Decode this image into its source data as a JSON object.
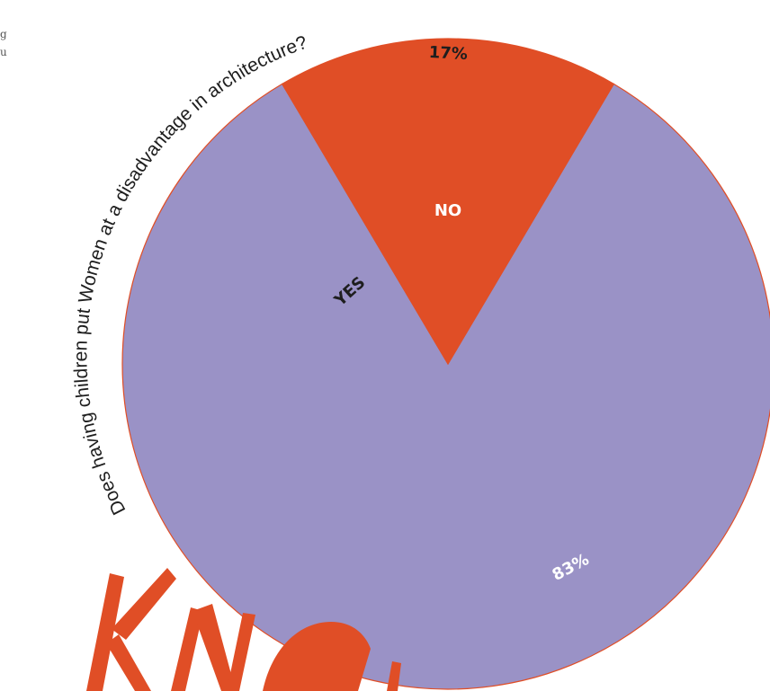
{
  "page": {
    "margin_fragment_1": "g",
    "margin_fragment_2": "u"
  },
  "colors": {
    "yes": "#9a92c6",
    "no": "#e04e26",
    "outline": "#e04e26",
    "logo": "#e04e26"
  },
  "chart_data": {
    "type": "pie",
    "title": "Does having children put Women at a disadvantage in architecture?",
    "slices": [
      {
        "label": "YES",
        "value": 83,
        "value_label": "83%",
        "color": "#9a92c6"
      },
      {
        "label": "NO",
        "value": 17,
        "value_label": "17%",
        "color": "#e04e26"
      }
    ]
  },
  "logo": {
    "name": "knowledge-logo-graphic"
  }
}
